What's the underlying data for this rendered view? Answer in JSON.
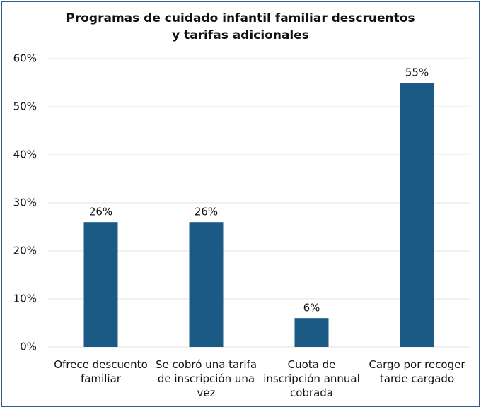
{
  "chart_data": {
    "type": "bar",
    "title": "Programas de cuidado infantil familiar descruentos y tarifas adicionales",
    "categories": [
      "Ofrece descuento familiar",
      "Se cobró una tarifa de inscripción una vez",
      "Cuota de inscripción annual cobrada",
      "Cargo por recoger tarde cargado"
    ],
    "values": [
      26,
      26,
      6,
      55
    ],
    "value_labels": [
      "26%",
      "26%",
      "6%",
      "55%"
    ],
    "color": "#1b5a85",
    "ylim": [
      0,
      60
    ],
    "yticks": [
      {
        "value": 0,
        "label": "0%"
      },
      {
        "value": 10,
        "label": "10%"
      },
      {
        "value": 20,
        "label": "20%"
      },
      {
        "value": 30,
        "label": "30%"
      },
      {
        "value": 40,
        "label": "40%"
      },
      {
        "value": 50,
        "label": "50%"
      },
      {
        "value": 60,
        "label": "60%"
      }
    ],
    "grid": true
  }
}
